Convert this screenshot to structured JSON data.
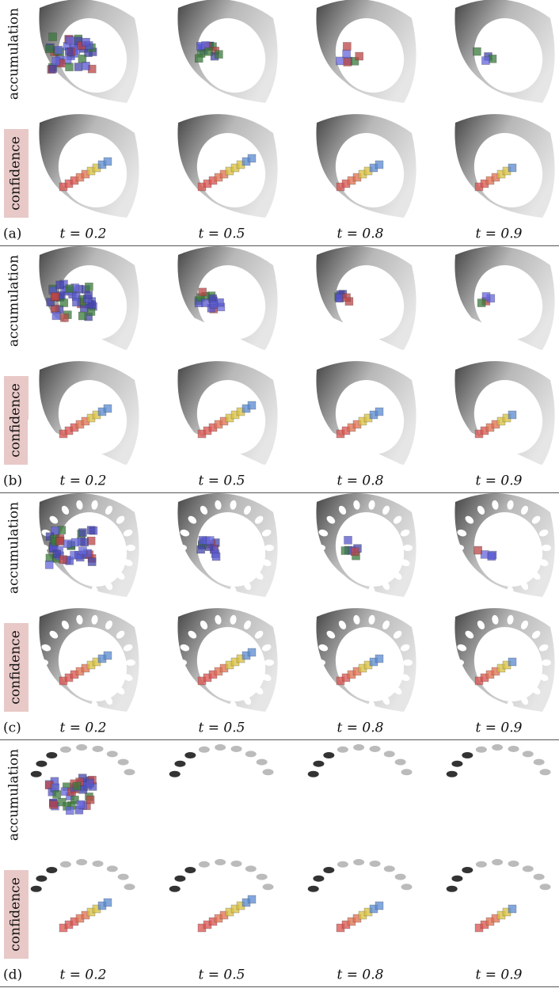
{
  "panels": [
    {
      "label": "(a)",
      "rows": [
        "accumulation",
        "confidence"
      ],
      "columns": [
        "t = 0.2",
        "t = 0.5",
        "t = 0.8",
        "t = 0.9"
      ]
    },
    {
      "label": "(b)",
      "rows": [
        "accumulation",
        "confidence"
      ],
      "columns": [
        "t = 0.2",
        "t = 0.5",
        "t = 0.8",
        "t = 0.9"
      ]
    },
    {
      "label": "(c)",
      "rows": [
        "accumulation",
        "confidence"
      ],
      "columns": [
        "t = 0.2",
        "t = 0.5",
        "t = 0.8",
        "t = 0.9"
      ]
    },
    {
      "label": "(d)",
      "rows": [
        "accumulation",
        "confidence"
      ],
      "columns": [
        "t = 0.2",
        "t = 0.5",
        "t = 0.8",
        "t = 0.9"
      ]
    }
  ]
}
